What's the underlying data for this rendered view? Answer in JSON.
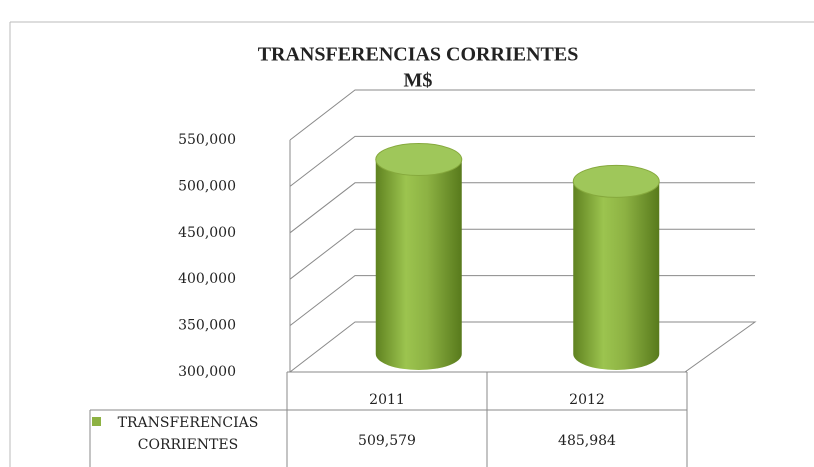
{
  "chart_data": {
    "type": "bar3d",
    "title": "TRANSFERENCIAS CORRIENTES",
    "subtitle": "M$",
    "categories": [
      "2011",
      "2012"
    ],
    "series": [
      {
        "name": "TRANSFERENCIAS CORRIENTES",
        "color": "#8db243",
        "values": [
          509579,
          485984
        ],
        "value_labels": [
          "509,579",
          "485,984"
        ]
      }
    ],
    "ylim": [
      300000,
      550000
    ],
    "yticks": [
      {
        "value": 300000,
        "label": "300,000"
      },
      {
        "value": 350000,
        "label": "350,000"
      },
      {
        "value": 400000,
        "label": "400,000"
      },
      {
        "value": 450000,
        "label": "450,000"
      },
      {
        "value": 500000,
        "label": "500,000"
      },
      {
        "value": 550000,
        "label": "550,000"
      }
    ],
    "grid": true,
    "data_table": true
  }
}
